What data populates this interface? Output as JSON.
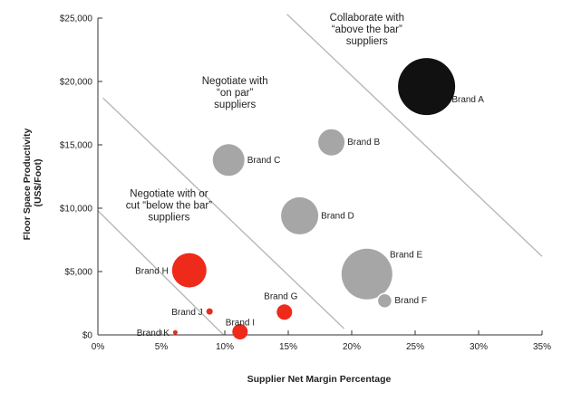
{
  "chart_data": {
    "type": "scatter",
    "subtype": "bubble",
    "xlabel": "Supplier Net Margin Percentage",
    "ylabel_lines": [
      "Floor Space Productivity",
      "(US$/Foot)"
    ],
    "x_ticks": [
      "0%",
      "5%",
      "10%",
      "15%",
      "20%",
      "25%",
      "30%",
      "35%"
    ],
    "y_ticks": [
      "$0",
      "$5,000",
      "$10,000",
      "$15,000",
      "$20,000",
      "$25,000"
    ],
    "xlim": [
      0,
      35
    ],
    "ylim": [
      0,
      25000
    ],
    "grid": false,
    "colors": {
      "black": "#111111",
      "gray": "#a6a6a6",
      "red": "#ee2a1b"
    },
    "points": [
      {
        "name": "Brand A",
        "x": 25.9,
        "y": 19600,
        "size": 31.5,
        "color": "black"
      },
      {
        "name": "Brand B",
        "x": 18.4,
        "y": 15200,
        "size": 14.5,
        "color": "gray"
      },
      {
        "name": "Brand C",
        "x": 10.3,
        "y": 13800,
        "size": 17.5,
        "color": "gray"
      },
      {
        "name": "Brand D",
        "x": 15.9,
        "y": 9400,
        "size": 20.5,
        "color": "gray"
      },
      {
        "name": "Brand E",
        "x": 21.2,
        "y": 4800,
        "size": 28,
        "color": "gray"
      },
      {
        "name": "Brand F",
        "x": 22.6,
        "y": 2700,
        "size": 8,
        "color": "gray"
      },
      {
        "name": "Brand G",
        "x": 14.7,
        "y": 1800,
        "size": 8.5,
        "color": "red"
      },
      {
        "name": "Brand H",
        "x": 7.2,
        "y": 5100,
        "size": 19,
        "color": "red"
      },
      {
        "name": "Brand I",
        "x": 11.2,
        "y": 250,
        "size": 8.5,
        "color": "red"
      },
      {
        "name": "Brand J",
        "x": 8.8,
        "y": 1850,
        "size": 3.5,
        "color": "red"
      },
      {
        "name": "Brand K",
        "x": 6.1,
        "y": 200,
        "size": 2.5,
        "color": "red"
      }
    ],
    "zone_lines": [
      {
        "from": [
          0.4,
          18700
        ],
        "to": [
          19.4,
          500
        ]
      },
      {
        "from": [
          0,
          9800
        ],
        "to": [
          9.9,
          0
        ]
      },
      {
        "from": [
          14.9,
          25300
        ],
        "to": [
          35,
          6200
        ]
      }
    ],
    "annotations": [
      {
        "lines": [
          "Collaborate with",
          "“above the bar”",
          "suppliers"
        ],
        "x": 21.2,
        "y": 24800
      },
      {
        "lines": [
          "Negotiate with",
          "“on par”",
          "suppliers"
        ],
        "x": 10.8,
        "y": 19800
      },
      {
        "lines": [
          "Negotiate with or",
          "cut “below the bar”",
          "suppliers"
        ],
        "x": 5.6,
        "y": 10900
      }
    ]
  }
}
